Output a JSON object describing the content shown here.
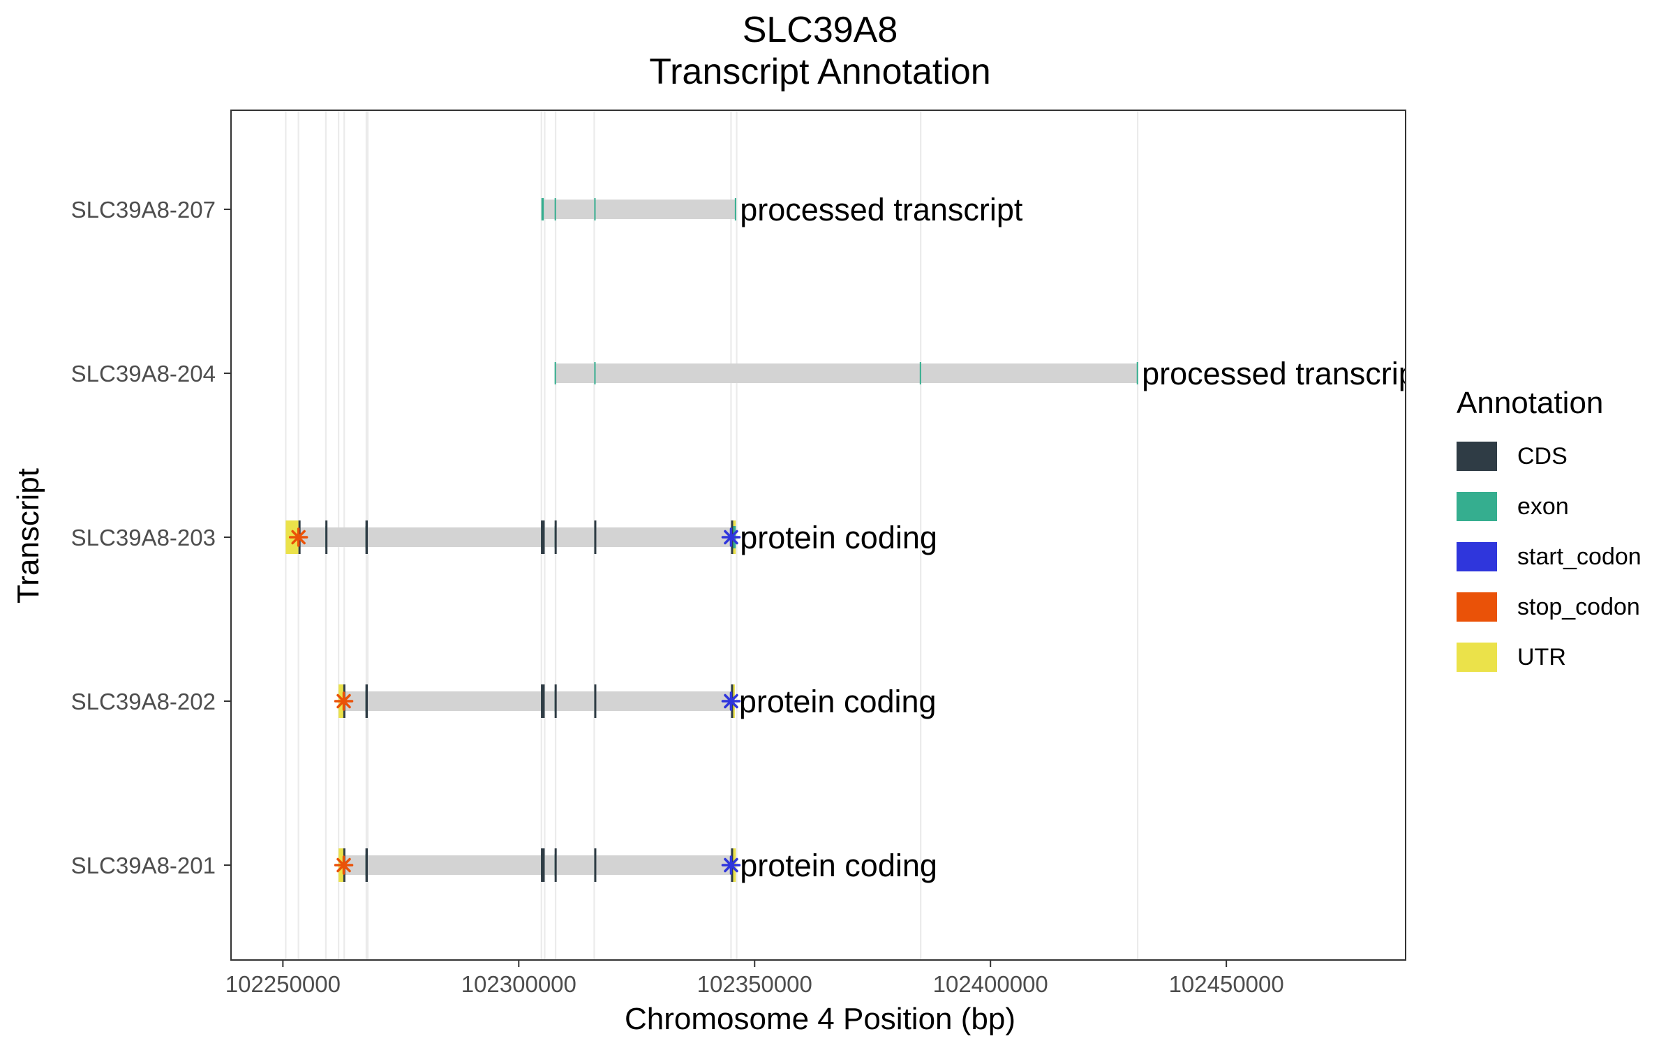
{
  "chart_data": {
    "type": "gene-track",
    "title_line1": "SLC39A8",
    "title_line2": "Transcript Annotation",
    "xlabel": "Chromosome 4 Position (bp)",
    "ylabel": "Transcript",
    "xlim": [
      102239000,
      102488000
    ],
    "xticks": [
      102250000,
      102300000,
      102350000,
      102400000,
      102450000
    ],
    "xtick_labels": [
      "102250000",
      "102300000",
      "102350000",
      "102400000",
      "102450000"
    ],
    "grid_lines": [
      102250600,
      102253300,
      102259100,
      102261800,
      102263000,
      102267700,
      102268000,
      102304800,
      102305500,
      102307800,
      102316000,
      102345000,
      102346200,
      102385200,
      102431200
    ],
    "transcripts": [
      {
        "name": "SLC39A8-207",
        "label": "processed transcript",
        "start": 102304800,
        "end": 102346000,
        "exons": [
          [
            102304800,
            102305300
          ],
          [
            102307600,
            102307900
          ],
          [
            102316000,
            102316200
          ],
          [
            102345800,
            102346000
          ]
        ],
        "cds": [],
        "utr": [],
        "stop_codon": null,
        "start_codon": null
      },
      {
        "name": "SLC39A8-204",
        "label": "processed transcript",
        "start": 102307600,
        "end": 102431200,
        "exons": [
          [
            102307600,
            102307900
          ],
          [
            102316000,
            102316200
          ],
          [
            102385000,
            102385300
          ],
          [
            102431000,
            102431200
          ]
        ],
        "cds": [],
        "utr": [],
        "stop_codon": null,
        "start_codon": null
      },
      {
        "name": "SLC39A8-203",
        "label": "protein coding",
        "start": 102250600,
        "end": 102346000,
        "exons": [
          [
            102259000,
            102259300
          ],
          [
            102267500,
            102268000
          ],
          [
            102304700,
            102305500
          ],
          [
            102307600,
            102308000
          ],
          [
            102316000,
            102316300
          ],
          [
            102345000,
            102346000
          ]
        ],
        "cds": [
          [
            102253300,
            102253600
          ],
          [
            102259000,
            102259300
          ],
          [
            102267500,
            102268000
          ],
          [
            102304700,
            102305500
          ],
          [
            102307600,
            102308000
          ],
          [
            102316000,
            102316300
          ],
          [
            102345000,
            102345400
          ]
        ],
        "utr": [
          [
            102250600,
            102253300
          ],
          [
            102345400,
            102346000
          ]
        ],
        "stop_codon": 102253300,
        "start_codon": 102345000
      },
      {
        "name": "SLC39A8-202",
        "label": "protein coding",
        "start": 102261800,
        "end": 102345800,
        "exons": [
          [
            102267500,
            102268000
          ],
          [
            102304700,
            102305500
          ],
          [
            102307600,
            102308000
          ],
          [
            102316000,
            102316300
          ]
        ],
        "cds": [
          [
            102262800,
            102263200
          ],
          [
            102267500,
            102268000
          ],
          [
            102304700,
            102305500
          ],
          [
            102307600,
            102308000
          ],
          [
            102316000,
            102316300
          ],
          [
            102345000,
            102345300
          ]
        ],
        "utr": [
          [
            102261800,
            102263000
          ],
          [
            102345300,
            102345800
          ]
        ],
        "stop_codon": 102262900,
        "start_codon": 102345000
      },
      {
        "name": "SLC39A8-201",
        "label": "protein coding",
        "start": 102261800,
        "end": 102346000,
        "exons": [
          [
            102267500,
            102268000
          ],
          [
            102304700,
            102305500
          ],
          [
            102307600,
            102308000
          ],
          [
            102316000,
            102316300
          ]
        ],
        "cds": [
          [
            102262800,
            102263200
          ],
          [
            102267500,
            102268000
          ],
          [
            102304700,
            102305500
          ],
          [
            102307600,
            102308000
          ],
          [
            102316000,
            102316300
          ],
          [
            102345000,
            102345400
          ]
        ],
        "utr": [
          [
            102261800,
            102263000
          ],
          [
            102345400,
            102346000
          ]
        ],
        "stop_codon": 102262900,
        "start_codon": 102345000
      }
    ],
    "legend": {
      "title": "Annotation",
      "items": [
        {
          "label": "CDS",
          "color": "#2f3c45"
        },
        {
          "label": "exon",
          "color": "#35ae8f"
        },
        {
          "label": "start_codon",
          "color": "#2f36dc"
        },
        {
          "label": "stop_codon",
          "color": "#ea5208"
        },
        {
          "label": "UTR",
          "color": "#ebe24a"
        }
      ]
    },
    "colors": {
      "intron": "#d3d3d3",
      "grid": "#ebebeb",
      "axis": "#333333"
    }
  }
}
